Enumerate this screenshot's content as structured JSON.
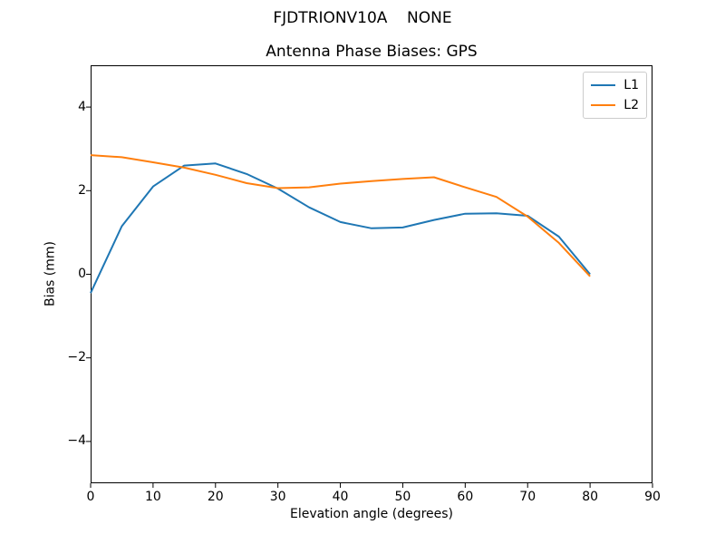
{
  "chart_data": {
    "type": "line",
    "suptitle": "FJDTRIONV10A    NONE",
    "title": "Antenna Phase Biases: GPS",
    "xlabel": "Elevation angle (degrees)",
    "ylabel": "Bias (mm)",
    "xlim": [
      0,
      90
    ],
    "ylim": [
      -5,
      5
    ],
    "xticks": [
      0,
      10,
      20,
      30,
      40,
      50,
      60,
      70,
      80,
      90
    ],
    "yticks": [
      -4,
      -2,
      0,
      2,
      4
    ],
    "grid": false,
    "legend_position": "upper right",
    "x": [
      0,
      5,
      10,
      15,
      20,
      25,
      30,
      35,
      40,
      45,
      50,
      55,
      60,
      65,
      70,
      75,
      80
    ],
    "series": [
      {
        "name": "L1",
        "color": "#1f77b4",
        "values": [
          -0.45,
          1.15,
          2.1,
          2.6,
          2.65,
          2.4,
          2.05,
          1.6,
          1.25,
          1.1,
          1.12,
          1.3,
          1.45,
          1.46,
          1.4,
          0.9,
          0.0
        ]
      },
      {
        "name": "L2",
        "color": "#ff7f0e",
        "values": [
          2.85,
          2.8,
          2.68,
          2.55,
          2.38,
          2.18,
          2.06,
          2.08,
          2.17,
          2.23,
          2.28,
          2.32,
          2.08,
          1.85,
          1.38,
          0.75,
          -0.05
        ]
      }
    ],
    "line_width": 2,
    "frame_color": "#000000",
    "tick_color": "#000000",
    "legend_border_color": "#cccccc"
  }
}
